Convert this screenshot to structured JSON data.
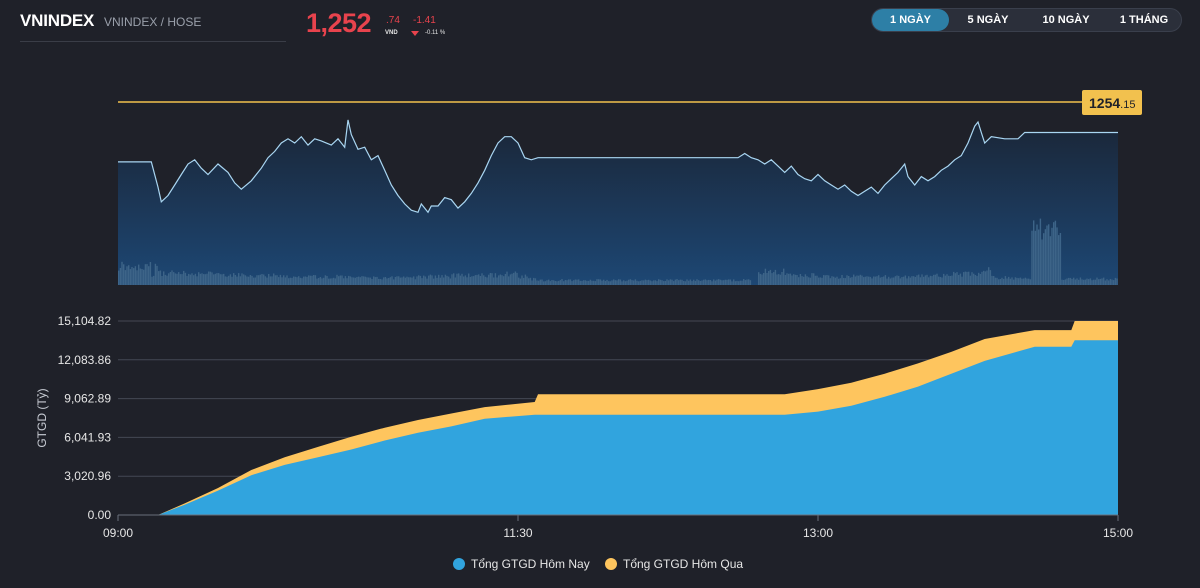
{
  "header": {
    "symbol": "VNINDEX",
    "exchange": "VNINDEX / HOSE",
    "price_int": "1,252",
    "price_dec": ".74",
    "currency": "VND",
    "change": "-1.41",
    "change_pct": "-0.11 %"
  },
  "tabs": [
    {
      "label": "1 NGÀY",
      "active": true
    },
    {
      "label": "5 NGÀY",
      "active": false
    },
    {
      "label": "10 NGÀY",
      "active": false
    },
    {
      "label": "1 THÁNG",
      "active": false
    }
  ],
  "colors": {
    "background": "#1f2129",
    "price_down": "#e8434d",
    "reference_line": "#f2c14e",
    "price_line": "#a9d6f2",
    "volume": "#3d6488",
    "today_area": "#31a4de",
    "yesterday_area": "#fec55e",
    "active_tab": "#2d7fa6"
  },
  "chart_data": [
    {
      "type": "area",
      "name": "intraday-price",
      "reference_label_main": "1254",
      "reference_label_dec": ".15",
      "reference_value": 1254.15,
      "x_unit": "minutes after 09:00",
      "price": [
        [
          0,
          1251.3
        ],
        [
          10,
          1251.3
        ],
        [
          12,
          1250.1
        ],
        [
          13,
          1249.4
        ],
        [
          15,
          1249.7
        ],
        [
          17,
          1250.2
        ],
        [
          19,
          1250.7
        ],
        [
          21,
          1251.2
        ],
        [
          23,
          1251.4
        ],
        [
          25,
          1251.0
        ],
        [
          27,
          1250.7
        ],
        [
          30,
          1251.2
        ],
        [
          33,
          1250.8
        ],
        [
          35,
          1250.3
        ],
        [
          37,
          1250.0
        ],
        [
          40,
          1250.4
        ],
        [
          43,
          1251.0
        ],
        [
          45,
          1251.5
        ],
        [
          47,
          1251.8
        ],
        [
          49,
          1252.2
        ],
        [
          51,
          1252.4
        ],
        [
          53,
          1252.2
        ],
        [
          55,
          1252.5
        ],
        [
          57,
          1252.1
        ],
        [
          59,
          1252.4
        ],
        [
          61,
          1252.3
        ],
        [
          64,
          1252.1
        ],
        [
          66,
          1252.4
        ],
        [
          68,
          1252.0
        ],
        [
          69,
          1253.3
        ],
        [
          70,
          1252.6
        ],
        [
          72,
          1251.9
        ],
        [
          74,
          1252.0
        ],
        [
          76,
          1251.4
        ],
        [
          78,
          1251.6
        ],
        [
          80,
          1250.9
        ],
        [
          82,
          1250.2
        ],
        [
          84,
          1249.7
        ],
        [
          86,
          1249.3
        ],
        [
          88,
          1249.0
        ],
        [
          90,
          1248.9
        ],
        [
          91,
          1249.3
        ],
        [
          93,
          1248.9
        ],
        [
          94,
          1249.2
        ],
        [
          96,
          1249.2
        ],
        [
          98,
          1249.6
        ],
        [
          100,
          1249.5
        ],
        [
          102,
          1249.1
        ],
        [
          104,
          1249.4
        ],
        [
          106,
          1249.8
        ],
        [
          108,
          1250.3
        ],
        [
          110,
          1250.9
        ],
        [
          112,
          1251.6
        ],
        [
          114,
          1252.2
        ],
        [
          116,
          1252.5
        ],
        [
          118,
          1252.5
        ],
        [
          120,
          1252.2
        ],
        [
          122,
          1251.5
        ],
        [
          124,
          1251.4
        ],
        [
          126,
          1251.5
        ],
        [
          150,
          1251.5
        ],
        [
          170,
          1251.5
        ],
        [
          186,
          1251.5
        ],
        [
          188,
          1251.7
        ],
        [
          190,
          1251.5
        ],
        [
          192,
          1251.4
        ],
        [
          194,
          1251.2
        ],
        [
          196,
          1251.4
        ],
        [
          198,
          1251.1
        ],
        [
          200,
          1250.8
        ],
        [
          202,
          1251.1
        ],
        [
          204,
          1250.7
        ],
        [
          206,
          1250.5
        ],
        [
          208,
          1250.4
        ],
        [
          210,
          1250.7
        ],
        [
          212,
          1250.4
        ],
        [
          214,
          1250.2
        ],
        [
          216,
          1250.0
        ],
        [
          218,
          1250.2
        ],
        [
          220,
          1249.9
        ],
        [
          222,
          1249.7
        ],
        [
          224,
          1249.9
        ],
        [
          226,
          1250.1
        ],
        [
          228,
          1249.8
        ],
        [
          230,
          1250.2
        ],
        [
          232,
          1250.5
        ],
        [
          234,
          1250.8
        ],
        [
          236,
          1251.2
        ],
        [
          237,
          1250.6
        ],
        [
          239,
          1250.2
        ],
        [
          241,
          1250.6
        ],
        [
          243,
          1250.4
        ],
        [
          245,
          1250.6
        ],
        [
          247,
          1250.9
        ],
        [
          249,
          1251.1
        ],
        [
          251,
          1251.4
        ],
        [
          253,
          1251.6
        ],
        [
          255,
          1252.2
        ],
        [
          257,
          1253.0
        ],
        [
          258,
          1253.2
        ],
        [
          259,
          1252.7
        ],
        [
          260,
          1252.2
        ],
        [
          262,
          1252.5
        ],
        [
          266,
          1252.4
        ],
        [
          270,
          1252.4
        ],
        [
          272,
          1252.7
        ],
        [
          276,
          1252.7
        ],
        [
          286,
          1252.7
        ]
      ],
      "volume": [
        [
          0,
          0.16
        ],
        [
          10,
          0.09
        ],
        [
          11,
          0.21
        ],
        [
          12,
          0.1
        ],
        [
          20,
          0.09
        ],
        [
          30,
          0.08
        ],
        [
          40,
          0.08
        ],
        [
          50,
          0.07
        ],
        [
          60,
          0.07
        ],
        [
          70,
          0.06
        ],
        [
          80,
          0.06
        ],
        [
          90,
          0.07
        ],
        [
          100,
          0.08
        ],
        [
          110,
          0.08
        ],
        [
          116,
          0.09
        ],
        [
          120,
          0.07
        ],
        [
          124,
          0.05
        ],
        [
          126,
          0.04
        ],
        [
          190,
          0.0
        ],
        [
          192,
          0.11
        ],
        [
          200,
          0.08
        ],
        [
          210,
          0.07
        ],
        [
          220,
          0.07
        ],
        [
          230,
          0.07
        ],
        [
          240,
          0.08
        ],
        [
          250,
          0.09
        ],
        [
          258,
          0.12
        ],
        [
          262,
          0.08
        ],
        [
          264,
          0.06
        ],
        [
          274,
          0.45
        ],
        [
          283,
          0.05
        ]
      ]
    },
    {
      "type": "area",
      "name": "cumulative-trading-value",
      "ylabel": "GTGD (Tỷ)",
      "yticks": [
        "0.00",
        "3,020.96",
        "6,041.93",
        "9,062.89",
        "12,083.86",
        "15,104.82"
      ],
      "ylim": [
        0,
        15104.82
      ],
      "xticks": [
        "09:00",
        "11:30",
        "13:00",
        "15:00"
      ],
      "xtick_minutes": [
        0,
        120,
        210,
        300
      ],
      "x_unit": "minutes after 09:00",
      "series": [
        {
          "name": "Tổng GTGD Hôm Nay",
          "color": "#31a4de",
          "points": [
            [
              0,
              0
            ],
            [
              12,
              0
            ],
            [
              20,
              800
            ],
            [
              30,
              1900
            ],
            [
              40,
              3100
            ],
            [
              50,
              3900
            ],
            [
              60,
              4500
            ],
            [
              70,
              5100
            ],
            [
              80,
              5800
            ],
            [
              90,
              6400
            ],
            [
              100,
              6900
            ],
            [
              110,
              7500
            ],
            [
              125,
              7800
            ],
            [
              126,
              7800
            ],
            [
              180,
              7800
            ],
            [
              200,
              7800
            ],
            [
              210,
              8050
            ],
            [
              220,
              8500
            ],
            [
              230,
              9200
            ],
            [
              240,
              10000
            ],
            [
              250,
              11000
            ],
            [
              260,
              12000
            ],
            [
              275,
              13100
            ],
            [
              286,
              13100
            ],
            [
              287,
              13600
            ],
            [
              300,
              13600
            ]
          ]
        },
        {
          "name": "Tổng GTGD Hôm Qua",
          "color": "#fec55e",
          "points": [
            [
              0,
              0
            ],
            [
              12,
              0
            ],
            [
              20,
              900
            ],
            [
              30,
              2100
            ],
            [
              40,
              3500
            ],
            [
              50,
              4500
            ],
            [
              60,
              5300
            ],
            [
              70,
              6100
            ],
            [
              80,
              6800
            ],
            [
              90,
              7400
            ],
            [
              100,
              7900
            ],
            [
              110,
              8400
            ],
            [
              125,
              8800
            ],
            [
              126,
              9400
            ],
            [
              180,
              9400
            ],
            [
              200,
              9400
            ],
            [
              210,
              9800
            ],
            [
              220,
              10300
            ],
            [
              230,
              11000
            ],
            [
              240,
              11800
            ],
            [
              250,
              12700
            ],
            [
              260,
              13700
            ],
            [
              275,
              14400
            ],
            [
              286,
              14400
            ],
            [
              287,
              15104.82
            ],
            [
              300,
              15104.82
            ]
          ]
        }
      ]
    }
  ],
  "legend": [
    {
      "label": "Tổng GTGD Hôm Nay"
    },
    {
      "label": "Tổng GTGD Hôm Qua"
    }
  ]
}
